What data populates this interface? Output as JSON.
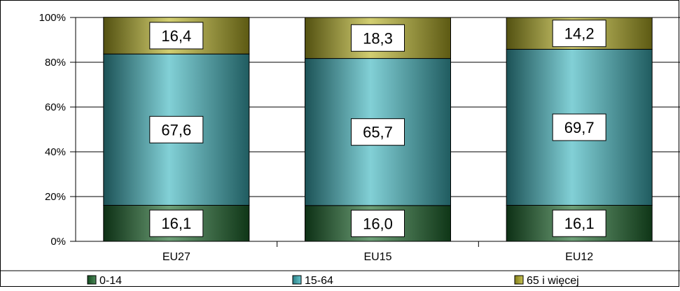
{
  "chart_data": {
    "type": "bar",
    "stacked": true,
    "percent_stacked": true,
    "categories": [
      "EU27",
      "EU15",
      "EU12"
    ],
    "series": [
      {
        "name": "0-14",
        "values": [
          16.1,
          16.0,
          16.1
        ],
        "color": "#1e6b2e"
      },
      {
        "name": "15-64",
        "values": [
          67.6,
          65.7,
          69.7
        ],
        "color": "#3fb7c0"
      },
      {
        "name": "65 i więcej",
        "values": [
          16.4,
          18.3,
          14.2
        ],
        "color": "#b9b325"
      }
    ],
    "value_labels": [
      [
        "16,1",
        "16,0",
        "16,1"
      ],
      [
        "67,6",
        "65,7",
        "69,7"
      ],
      [
        "16,4",
        "18,3",
        "14,2"
      ]
    ],
    "ylim": [
      0,
      100
    ],
    "yticks": [
      "0%",
      "20%",
      "40%",
      "60%",
      "80%",
      "100%"
    ],
    "grid": true,
    "legend_position": "bottom",
    "title": "",
    "xlabel": "",
    "ylabel": ""
  }
}
